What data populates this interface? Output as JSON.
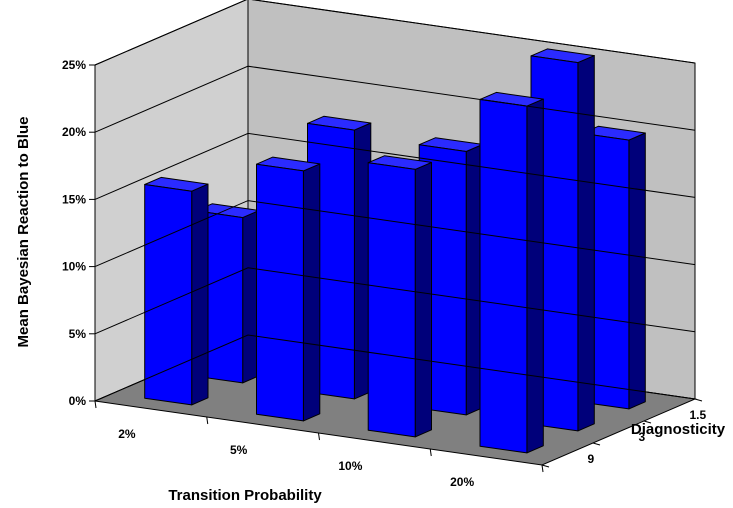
{
  "chart_data": {
    "type": "bar",
    "subtype": "3d-column",
    "title": "",
    "xlabel": "Transition Probability",
    "ylabel": "Mean Bayesian Reaction to Blue",
    "zlabel": "Diagnosticity",
    "ylim": [
      0,
      0.25
    ],
    "y_ticks": [
      "0%",
      "5%",
      "10%",
      "15%",
      "20%",
      "25%"
    ],
    "categories": [
      "2%",
      "5%",
      "10%",
      "20%"
    ],
    "series": [
      {
        "name": "1.5",
        "values": [
          null,
          0.044,
          0.088,
          0.2
        ]
      },
      {
        "name": "3",
        "values": [
          0.123,
          0.2,
          0.196,
          0.274
        ]
      },
      {
        "name": "9",
        "values": [
          0.159,
          0.186,
          0.199,
          0.258
        ]
      }
    ],
    "grid": true,
    "colors": {
      "bar_front": "#0000ff",
      "bar_side": "#00007a",
      "bar_top": "#2b2bff",
      "back_wall": "#c0c0c0",
      "side_wall": "#d0d0d0",
      "floor": "#808080"
    }
  }
}
